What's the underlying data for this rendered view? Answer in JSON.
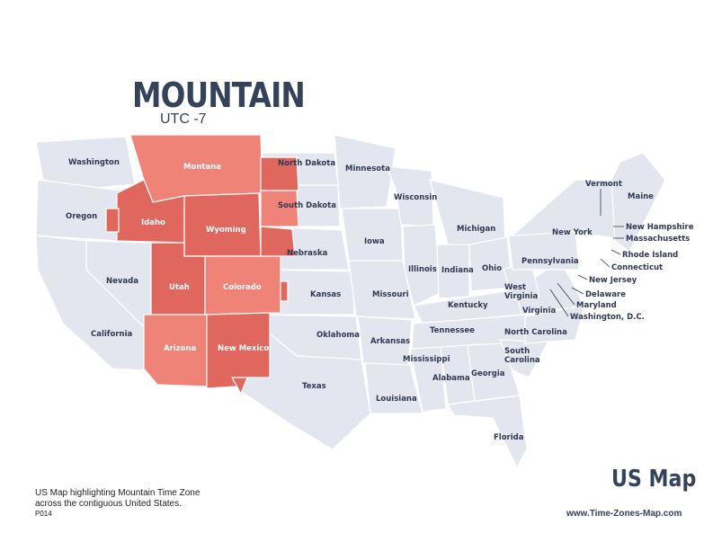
{
  "header": {
    "title": "MOUNTAIN",
    "subtitle": "UTC -7"
  },
  "footer": {
    "caption_line1": "US Map highlighting Mountain Time Zone",
    "caption_line2": "across the contiguous United States.",
    "code": "P014",
    "brand": "US Map",
    "website": "www.Time-Zones-Map.com"
  },
  "colors": {
    "base": "#e4e6ef",
    "highlight_light": "#f08377",
    "highlight_dark": "#e0675d",
    "text": "#34425a"
  },
  "states": {
    "washington": "Washington",
    "oregon": "Oregon",
    "california": "California",
    "nevada": "Nevada",
    "idaho": "Idaho",
    "montana": "Montana",
    "wyoming": "Wyoming",
    "utah": "Utah",
    "colorado": "Colorado",
    "arizona": "Arizona",
    "new_mexico": "New Mexico",
    "north_dakota": "North Dakota",
    "south_dakota": "South Dakota",
    "nebraska": "Nebraska",
    "kansas": "Kansas",
    "oklahoma": "Oklahoma",
    "texas": "Texas",
    "minnesota": "Minnesota",
    "iowa": "Iowa",
    "missouri": "Missouri",
    "arkansas": "Arkansas",
    "louisiana": "Louisiana",
    "wisconsin": "Wisconsin",
    "illinois": "Illinois",
    "michigan": "Michigan",
    "indiana": "Indiana",
    "ohio": "Ohio",
    "kentucky": "Kentucky",
    "tennessee": "Tennessee",
    "mississippi": "Mississippi",
    "alabama": "Alabama",
    "georgia": "Georgia",
    "florida": "Florida",
    "south_carolina_1": "South",
    "south_carolina_2": "Carolina",
    "north_carolina": "North Carolina",
    "virginia": "Virginia",
    "west_virginia_1": "West",
    "west_virginia_2": "Virginia",
    "pennsylvania": "Pennsylvania",
    "new_york": "New York",
    "vermont": "Vermont",
    "maine": "Maine",
    "new_hampshire": "New Hampshire",
    "massachusetts": "Massachusetts",
    "rhode_island": "Rhode Island",
    "connecticut": "Connecticut",
    "new_jersey": "New Jersey",
    "delaware": "Delaware",
    "maryland": "Maryland",
    "washington_dc": "Washington, D.C."
  }
}
